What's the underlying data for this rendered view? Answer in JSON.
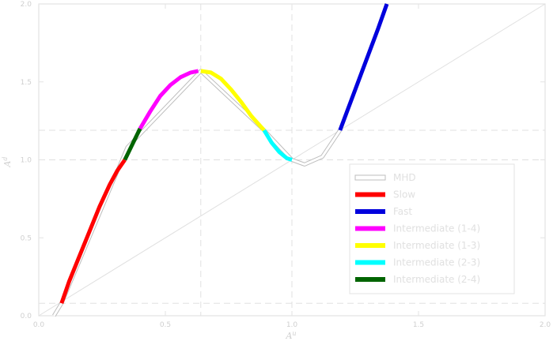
{
  "chart_data": {
    "type": "line",
    "xlabel": "A",
    "xlabel_sub": "u",
    "ylabel": "A",
    "ylabel_sub": "d",
    "xlim": [
      0.0,
      2.0
    ],
    "ylim": [
      0.0,
      2.0
    ],
    "xticks": [
      "0.0",
      "0.5",
      "1.0",
      "1.5",
      "2.0"
    ],
    "yticks": [
      "0.0",
      "0.5",
      "1.0",
      "1.5",
      "2.0"
    ],
    "grid": false,
    "legend_position": "lower-right",
    "reference_lines": {
      "diagonal": [
        [
          0.0,
          0.0
        ],
        [
          2.0,
          2.0
        ]
      ],
      "dashed_vertical_x": [
        0.64,
        1.0
      ],
      "dashed_horizontal_y": [
        0.08,
        1.0,
        1.19
      ]
    },
    "series": [
      {
        "name": "MHD",
        "color": "#cccccc",
        "style": "outline",
        "x": [
          0.06,
          0.09,
          0.35,
          0.64,
          0.89,
          1.0,
          1.05,
          1.12,
          1.19
        ],
        "y": [
          0.0,
          0.08,
          1.08,
          1.57,
          1.19,
          1.0,
          0.97,
          1.02,
          1.19
        ]
      },
      {
        "name": "Slow",
        "color": "#ff0000",
        "x": [
          0.09,
          0.12,
          0.16,
          0.2,
          0.24,
          0.28,
          0.31,
          0.34
        ],
        "y": [
          0.08,
          0.22,
          0.38,
          0.54,
          0.7,
          0.84,
          0.93,
          1.0
        ]
      },
      {
        "name": "Fast",
        "color": "#0000dd",
        "x": [
          1.19,
          1.22,
          1.25,
          1.28,
          1.31,
          1.34,
          1.375
        ],
        "y": [
          1.19,
          1.32,
          1.45,
          1.58,
          1.71,
          1.84,
          2.0
        ]
      },
      {
        "name": "Intermediate (1-4)",
        "color": "#ff00ff",
        "x": [
          0.4,
          0.44,
          0.48,
          0.52,
          0.56,
          0.6,
          0.63
        ],
        "y": [
          1.2,
          1.31,
          1.41,
          1.48,
          1.53,
          1.56,
          1.57
        ]
      },
      {
        "name": "Intermediate (1-3)",
        "color": "#ffff00",
        "x": [
          0.64,
          0.68,
          0.72,
          0.76,
          0.8,
          0.84,
          0.89
        ],
        "y": [
          1.57,
          1.56,
          1.52,
          1.45,
          1.37,
          1.28,
          1.19
        ]
      },
      {
        "name": "Intermediate (2-3)",
        "color": "#00ffff",
        "x": [
          0.89,
          0.92,
          0.95,
          0.98,
          1.0
        ],
        "y": [
          1.19,
          1.11,
          1.05,
          1.01,
          1.0
        ]
      },
      {
        "name": "Intermediate (2-4)",
        "color": "#006400",
        "x": [
          0.34,
          0.37,
          0.4
        ],
        "y": [
          1.0,
          1.1,
          1.2
        ]
      }
    ]
  }
}
